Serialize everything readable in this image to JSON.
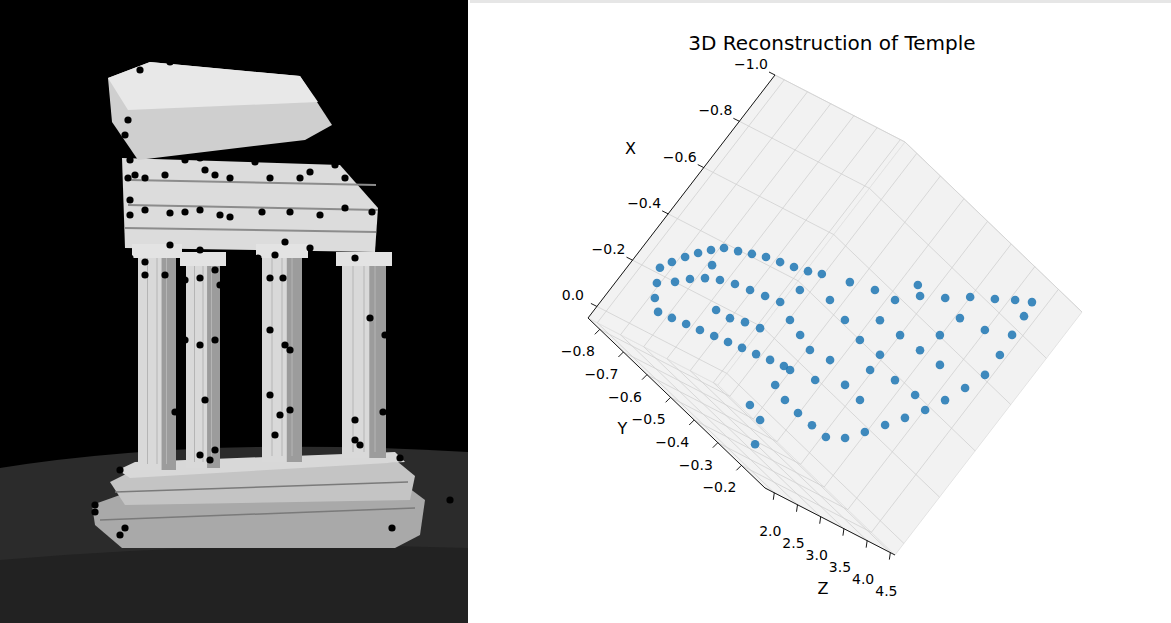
{
  "chart_data": {
    "type": "scatter3d",
    "title": "3D Reconstruction of Temple",
    "x_label": "X",
    "y_label": "Y",
    "z_label": "Z",
    "color": "#1f77b4",
    "marker": "circle",
    "grid": true,
    "xlim": [
      -1.0,
      0.05
    ],
    "ylim": [
      -0.85,
      -0.1
    ],
    "zlim": [
      1.8,
      4.6
    ],
    "xticks": [
      {
        "value": -1.0,
        "label": "−1.0"
      },
      {
        "value": -0.8,
        "label": "−0.8"
      },
      {
        "value": -0.6,
        "label": "−0.6"
      },
      {
        "value": -0.4,
        "label": "−0.4"
      },
      {
        "value": -0.2,
        "label": "−0.2"
      },
      {
        "value": 0.0,
        "label": "0.0"
      }
    ],
    "yticks": [
      {
        "value": -0.8,
        "label": "−0.8"
      },
      {
        "value": -0.7,
        "label": "−0.7"
      },
      {
        "value": -0.6,
        "label": "−0.6"
      },
      {
        "value": -0.5,
        "label": "−0.5"
      },
      {
        "value": -0.4,
        "label": "−0.4"
      },
      {
        "value": -0.3,
        "label": "−0.3"
      },
      {
        "value": -0.2,
        "label": "−0.2"
      }
    ],
    "zticks": [
      {
        "value": 2.0,
        "label": "2.0"
      },
      {
        "value": 2.5,
        "label": "2.5"
      },
      {
        "value": 3.0,
        "label": "3.0"
      },
      {
        "value": 3.5,
        "label": "3.5"
      },
      {
        "value": 4.0,
        "label": "4.0"
      },
      {
        "value": 4.5,
        "label": "4.5"
      }
    ],
    "x": [
      -0.232,
      -0.275,
      -0.319,
      -0.36,
      -0.398,
      -0.434,
      -0.46,
      -0.486,
      -0.512,
      -0.533,
      -0.554,
      -0.577,
      -0.603,
      -0.187,
      -0.145,
      -0.118,
      -0.136,
      -0.155,
      -0.173,
      -0.192,
      -0.21,
      -0.229,
      -0.247,
      -0.266,
      -0.284,
      -0.233,
      -0.276,
      -0.314,
      -0.345,
      -0.371,
      -0.392,
      -0.413,
      -0.434,
      -0.363,
      -0.261,
      -0.274,
      -0.3,
      -0.321,
      -0.384,
      -0.371,
      -0.357,
      -0.26,
      -0.187,
      -0.173,
      -0.172,
      -0.175,
      -0.179,
      -0.529,
      -0.515,
      -0.501,
      -0.38,
      -0.295,
      -0.354,
      -0.451,
      -0.077,
      -0.064,
      0.008,
      -0.482,
      -0.179,
      -0.241,
      -0.307,
      -0.372,
      -0.411,
      -0.483,
      -0.561,
      -0.641,
      -0.726,
      -0.805,
      -0.88,
      -0.934,
      -0.899,
      -0.853,
      -0.799,
      -0.737,
      -0.682,
      -0.704,
      -0.641,
      -0.555,
      -0.566,
      -0.576,
      -0.661,
      -0.751,
      -0.469,
      -0.442,
      -0.453,
      -0.309,
      -0.587,
      -0.781,
      -0.621,
      -0.661
    ],
    "y": [
      -0.813,
      -0.795,
      -0.772,
      -0.748,
      -0.722,
      -0.694,
      -0.654,
      -0.615,
      -0.575,
      -0.531,
      -0.488,
      -0.446,
      -0.407,
      -0.792,
      -0.769,
      -0.735,
      -0.69,
      -0.644,
      -0.599,
      -0.553,
      -0.508,
      -0.463,
      -0.417,
      -0.372,
      -0.327,
      -0.75,
      -0.719,
      -0.684,
      -0.644,
      -0.6,
      -0.552,
      -0.504,
      -0.456,
      -0.691,
      -0.597,
      -0.548,
      -0.504,
      -0.456,
      -0.487,
      -0.434,
      -0.382,
      -0.393,
      -0.401,
      -0.349,
      -0.293,
      -0.236,
      -0.18,
      -0.427,
      -0.353,
      -0.279,
      -0.314,
      -0.313,
      -0.231,
      -0.198,
      -0.425,
      -0.372,
      -0.339,
      -0.519,
      -0.264,
      -0.227,
      -0.191,
      -0.156,
      -0.21,
      -0.18,
      -0.154,
      -0.13,
      -0.131,
      -0.139,
      -0.145,
      -0.152,
      -0.197,
      -0.248,
      -0.312,
      -0.371,
      -0.436,
      -0.462,
      -0.401,
      -0.4,
      -0.323,
      -0.246,
      -0.226,
      -0.209,
      -0.335,
      -0.251,
      -0.174,
      -0.299,
      -0.17,
      -0.126,
      -0.412,
      -0.336
    ],
    "z": [
      2.08,
      2.08,
      2.08,
      2.08,
      2.08,
      2.08,
      2.08,
      2.08,
      2.08,
      2.08,
      2.08,
      2.08,
      2.08,
      2.08,
      2.08,
      2.08,
      2.08,
      2.08,
      2.08,
      2.08,
      2.08,
      2.08,
      2.08,
      2.08,
      2.08,
      2.08,
      2.08,
      2.08,
      2.08,
      2.08,
      2.08,
      2.08,
      2.08,
      2.08,
      2.08,
      2.08,
      2.08,
      2.08,
      2.64,
      2.64,
      2.64,
      2.64,
      2.64,
      2.64,
      2.64,
      2.64,
      2.64,
      2.64,
      2.64,
      2.64,
      2.64,
      2.64,
      2.64,
      2.64,
      2.64,
      2.64,
      2.64,
      2.64,
      3.48,
      3.48,
      3.48,
      3.48,
      4.04,
      4.04,
      4.04,
      4.04,
      4.04,
      4.04,
      4.04,
      4.04,
      4.04,
      4.04,
      4.04,
      4.04,
      4.04,
      4.04,
      3.48,
      3.48,
      3.48,
      3.48,
      3.48,
      3.48,
      3.48,
      3.48,
      3.48,
      3.48,
      3.48,
      3.48,
      2.64,
      2.64
    ]
  }
}
